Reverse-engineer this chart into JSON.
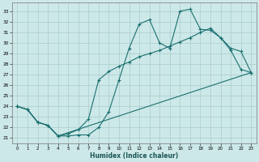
{
  "xlabel": "Humidex (Indice chaleur)",
  "bg_color": "#cde8e8",
  "grid_color": "#aacccc",
  "line_color": "#1a7070",
  "xlim": [
    -0.5,
    23.5
  ],
  "ylim": [
    20.5,
    33.8
  ],
  "xticks": [
    0,
    1,
    2,
    3,
    4,
    5,
    6,
    7,
    8,
    9,
    10,
    11,
    12,
    13,
    14,
    15,
    16,
    17,
    18,
    19,
    20,
    21,
    22,
    23
  ],
  "yticks": [
    21,
    22,
    23,
    24,
    25,
    26,
    27,
    28,
    29,
    30,
    31,
    32,
    33
  ],
  "curve1_x": [
    0,
    1,
    2,
    3,
    4,
    5,
    6,
    7,
    8,
    9,
    10,
    11,
    12,
    13,
    14,
    15,
    16,
    17,
    18,
    19,
    20,
    21,
    22,
    23
  ],
  "curve1_y": [
    24,
    23.7,
    22.5,
    22.2,
    21.2,
    21.2,
    21.3,
    21.3,
    22.0,
    23.5,
    26.5,
    29.5,
    31.8,
    32.2,
    30.0,
    29.5,
    33.0,
    33.2,
    31.3,
    31.2,
    30.5,
    29.5,
    29.2,
    27.2
  ],
  "curve2_x": [
    0,
    1,
    2,
    3,
    4,
    5,
    6,
    7,
    8,
    9,
    10,
    11,
    12,
    13,
    14,
    15,
    16,
    17,
    18,
    19,
    20,
    21,
    22,
    23
  ],
  "curve2_y": [
    24,
    23.7,
    22.5,
    22.2,
    21.2,
    21.4,
    21.8,
    22.8,
    26.5,
    27.3,
    27.8,
    28.2,
    28.7,
    29.0,
    29.3,
    29.7,
    30.1,
    30.5,
    31.0,
    31.4,
    30.5,
    29.3,
    27.5,
    27.2
  ],
  "curve3_x": [
    0,
    1,
    2,
    3,
    4,
    23
  ],
  "curve3_y": [
    24,
    23.7,
    22.5,
    22.2,
    21.2,
    27.2
  ]
}
